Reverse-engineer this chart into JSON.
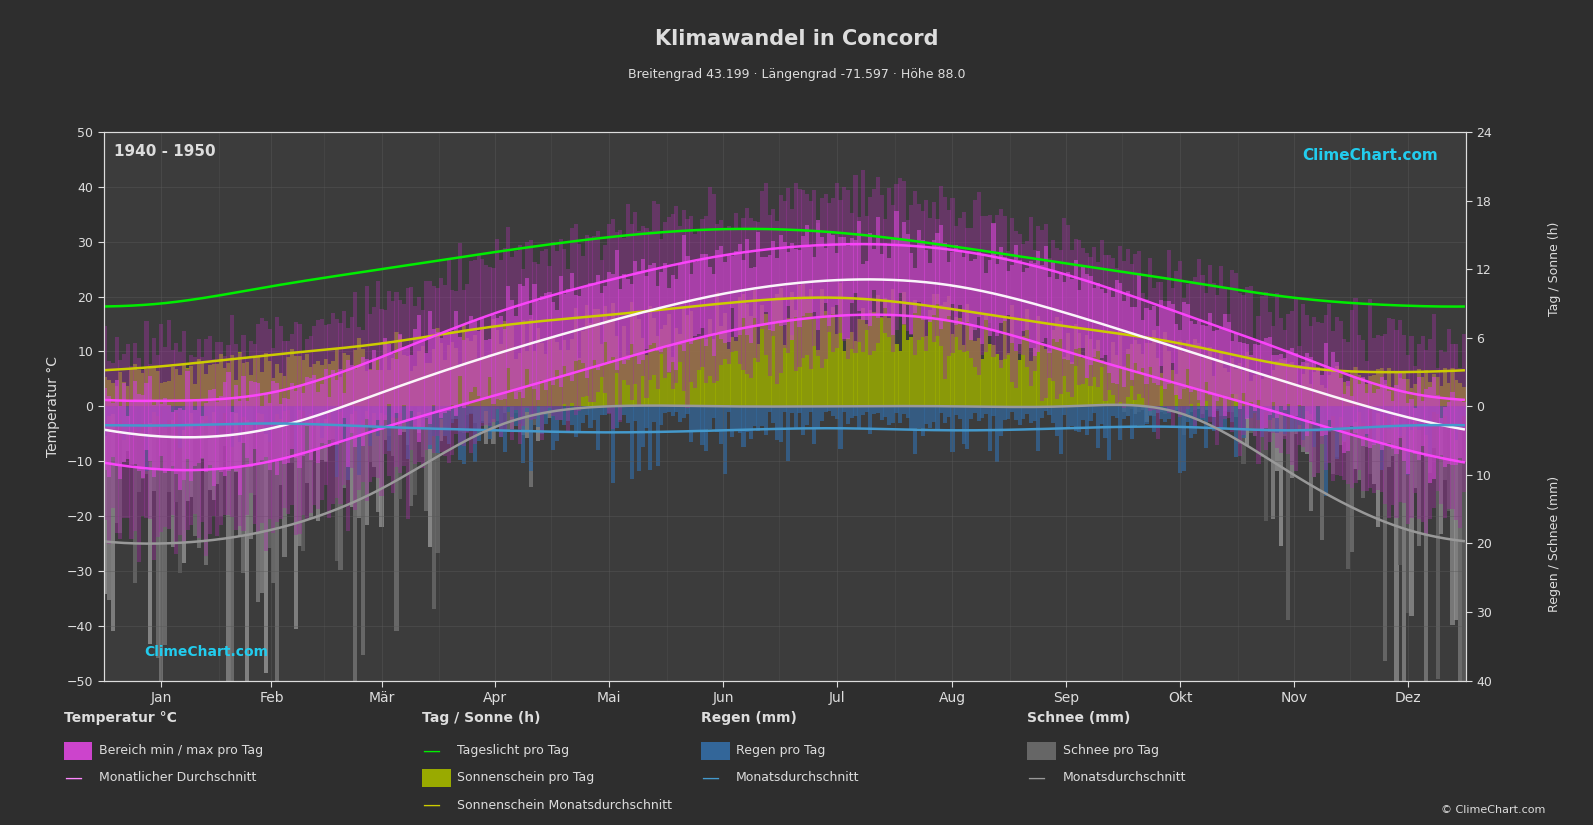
{
  "title": "Klimawandel in Concord",
  "subtitle": "Breitengrad 43.199 · Längengrad -71.597 · Höhe 88.0",
  "period_label": "1940 - 1950",
  "background_color": "#2e2e2e",
  "plot_bg_color": "#3c3c3c",
  "grid_color": "#5a5a5a",
  "text_color": "#dddddd",
  "months": [
    "Jan",
    "Feb",
    "Mär",
    "Apr",
    "Mai",
    "Jun",
    "Jul",
    "Aug",
    "Sep",
    "Okt",
    "Nov",
    "Dez"
  ],
  "days_per_month": [
    31,
    28,
    31,
    30,
    31,
    30,
    31,
    31,
    30,
    31,
    30,
    31
  ],
  "temp_ylim": [
    -50,
    50
  ],
  "temp_yticks": [
    -50,
    -40,
    -30,
    -20,
    -10,
    0,
    10,
    20,
    30,
    40,
    50
  ],
  "sun_ticks": [
    0,
    6,
    12,
    18,
    24
  ],
  "rain_ticks": [
    0,
    10,
    20,
    30,
    40
  ],
  "temp_avg": [
    -5.5,
    -4.0,
    2.5,
    9.5,
    15.5,
    20.5,
    23.0,
    22.0,
    17.0,
    10.5,
    4.0,
    -2.0
  ],
  "temp_min_avg": [
    -11.5,
    -10.0,
    -4.0,
    2.0,
    8.0,
    13.5,
    16.5,
    15.5,
    10.0,
    4.0,
    -2.0,
    -8.0
  ],
  "temp_max_avg": [
    1.0,
    2.5,
    9.0,
    17.0,
    23.0,
    27.5,
    29.5,
    28.5,
    24.0,
    17.0,
    9.5,
    2.5
  ],
  "temp_min_daily_low": [
    -23,
    -21,
    -14,
    -4,
    1,
    7,
    11,
    10,
    4,
    -1,
    -9,
    -19
  ],
  "temp_max_daily_high": [
    11,
    13,
    19,
    27,
    32,
    35,
    38,
    36,
    30,
    24,
    16,
    12
  ],
  "daylight": [
    9.0,
    10.5,
    12.0,
    13.5,
    14.8,
    15.5,
    15.2,
    14.0,
    12.5,
    11.0,
    9.5,
    8.8
  ],
  "sunshine_daily": [
    3.5,
    4.5,
    5.5,
    7.0,
    8.0,
    9.0,
    9.5,
    8.5,
    7.0,
    5.5,
    3.5,
    3.0
  ],
  "rain_daily_mm": [
    2.8,
    2.5,
    3.0,
    3.5,
    3.8,
    3.5,
    3.2,
    3.5,
    3.2,
    3.0,
    3.5,
    2.8
  ],
  "rain_avg_mm": [
    2.8,
    2.5,
    3.0,
    3.5,
    3.8,
    3.5,
    3.2,
    3.5,
    3.2,
    3.0,
    3.5,
    2.8
  ],
  "snow_daily_mm": [
    20,
    18,
    12,
    3,
    0,
    0,
    0,
    0,
    0,
    1,
    10,
    18
  ],
  "snow_avg_mm": [
    20,
    18,
    12,
    3,
    0,
    0,
    0,
    0,
    0,
    1,
    10,
    18
  ],
  "color_temp_outer": "#993399",
  "color_temp_inner": "#cc44cc",
  "color_temp_avg_line": "#ff88ff",
  "color_temp_minmax_line": "#ff44ff",
  "color_daylight": "#00ee00",
  "color_sunshine_bar": "#99aa00",
  "color_sunshine_line": "#cccc00",
  "color_rain_bar": "#336699",
  "color_rain_line": "#4499cc",
  "color_snow_bar": "#666666",
  "color_snow_line": "#999999",
  "sun_scale_max": 24.0,
  "rain_scale_max": 40.0
}
